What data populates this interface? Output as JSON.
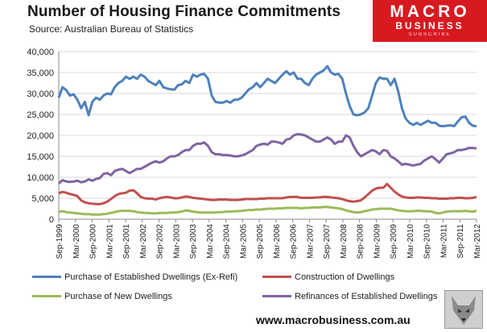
{
  "header": {
    "title": "Number of Housing  Finance Commitments",
    "source": "Source: Australian Bureau of Statistics"
  },
  "logo": {
    "macro": "MACRO",
    "business": "BUSINESS",
    "tagline": "SUBSCRIBE"
  },
  "footer": {
    "url": "www.macrobusiness.com.au"
  },
  "colors": {
    "established": "#4f81bd",
    "construction": "#c0504d",
    "new": "#9bbb59",
    "refinance": "#8064a2",
    "grid": "#d9d9d9",
    "brand": "#d71920"
  },
  "chart_data": {
    "type": "line",
    "title": "Number of Housing Finance Commitments",
    "ylim": [
      0,
      40000
    ],
    "yticks": [
      0,
      5000,
      10000,
      15000,
      20000,
      25000,
      30000,
      35000,
      40000
    ],
    "ytick_labels": [
      "0",
      "5,000",
      "10,000",
      "15,000",
      "20,000",
      "25,000",
      "30,000",
      "35,000",
      "40,000"
    ],
    "grid": true,
    "x_start": "Sep-1999",
    "x_end": "Mar-2012",
    "x_step_months": 6,
    "x_labels": [
      "Sep-1999",
      "Mar-2000",
      "Sep-2000",
      "Mar-2001",
      "Sep-2001",
      "Mar-2002",
      "Sep-2002",
      "Mar-2003",
      "Sep-2003",
      "Mar-2004",
      "Sep-2004",
      "Mar-2005",
      "Sep-2005",
      "Mar-2006",
      "Sep-2006",
      "Mar-2007",
      "Sep-2007",
      "Mar-2008",
      "Sep-2008",
      "Mar-2009",
      "Sep-2009",
      "Mar-2010",
      "Sep-2010",
      "Mar-2011",
      "Sep-2011",
      "Mar-2012"
    ],
    "legend_position": "bottom",
    "series": [
      {
        "name": "Purchase of Established Dwellings (Ex-Refi)",
        "color_key": "established",
        "values": [
          29000,
          31500,
          30800,
          29500,
          29800,
          28500,
          26500,
          28000,
          24800,
          28000,
          29000,
          28500,
          29500,
          30000,
          29800,
          31500,
          32500,
          33000,
          34000,
          33500,
          34000,
          33500,
          34500,
          34000,
          33000,
          32500,
          32000,
          33000,
          31500,
          31200,
          31000,
          30900,
          32000,
          32200,
          33000,
          32500,
          34500,
          34000,
          34500,
          34700,
          33500,
          29500,
          28000,
          27800,
          27800,
          28200,
          27800,
          28500,
          28500,
          29000,
          30000,
          31000,
          31500,
          32500,
          31500,
          32500,
          33500,
          33000,
          32500,
          33500,
          34500,
          35300,
          34500,
          35000,
          33500,
          33500,
          32500,
          32000,
          33500,
          34500,
          35000,
          35500,
          36500,
          35000,
          34500,
          34700,
          33500,
          30000,
          27000,
          25000,
          24800,
          25000,
          25500,
          26500,
          29500,
          32500,
          33800,
          33500,
          33500,
          32000,
          33500,
          30500,
          26500,
          24000,
          23000,
          22500,
          23000,
          22500,
          23000,
          23500,
          23000,
          23000,
          22300,
          22200,
          22300,
          22400,
          22200,
          23300,
          24300,
          24500,
          23000,
          22300,
          22200
        ]
      },
      {
        "name": "Construction of Dwellings",
        "color_key": "construction",
        "values": [
          6200,
          6500,
          6300,
          6000,
          5800,
          5500,
          4500,
          4000,
          3800,
          3700,
          3600,
          3600,
          3800,
          4200,
          4800,
          5500,
          6000,
          6200,
          6300,
          6800,
          6900,
          6200,
          5300,
          5000,
          4900,
          4900,
          4700,
          5000,
          5200,
          5300,
          5200,
          5000,
          5000,
          5200,
          5400,
          5300,
          5100,
          5000,
          4900,
          4800,
          4700,
          4600,
          4600,
          4700,
          4700,
          4700,
          4600,
          4600,
          4600,
          4700,
          4800,
          4800,
          4800,
          4800,
          4900,
          4900,
          5000,
          5000,
          5000,
          5000,
          5000,
          5200,
          5300,
          5300,
          5300,
          5100,
          5100,
          5100,
          5100,
          5200,
          5200,
          5300,
          5300,
          5200,
          5100,
          5000,
          4800,
          4500,
          4300,
          4200,
          4300,
          4500,
          5200,
          6000,
          6800,
          7300,
          7500,
          7500,
          8400,
          7500,
          6600,
          5900,
          5400,
          5200,
          5100,
          5100,
          5200,
          5200,
          5100,
          5100,
          5000,
          5000,
          4900,
          4900,
          4900,
          5000,
          5000,
          5100,
          5100,
          5000,
          5000,
          5100,
          5300
        ]
      },
      {
        "name": "Purchase of New Dwellings",
        "color_key": "new",
        "values": [
          1800,
          1900,
          1700,
          1600,
          1500,
          1400,
          1300,
          1200,
          1200,
          1100,
          1100,
          1100,
          1200,
          1300,
          1500,
          1700,
          1900,
          2000,
          2000,
          2000,
          1900,
          1700,
          1600,
          1500,
          1500,
          1400,
          1400,
          1500,
          1500,
          1500,
          1600,
          1600,
          1700,
          1800,
          2100,
          2000,
          1800,
          1700,
          1600,
          1600,
          1600,
          1600,
          1600,
          1700,
          1700,
          1800,
          1800,
          1900,
          1900,
          2000,
          2100,
          2200,
          2200,
          2300,
          2300,
          2400,
          2500,
          2500,
          2500,
          2600,
          2600,
          2700,
          2700,
          2700,
          2700,
          2600,
          2700,
          2700,
          2800,
          2800,
          2800,
          2900,
          2900,
          2800,
          2700,
          2600,
          2400,
          2100,
          1900,
          1700,
          1600,
          1700,
          1900,
          2100,
          2300,
          2400,
          2500,
          2500,
          2500,
          2500,
          2300,
          2100,
          2000,
          1900,
          1900,
          1900,
          2000,
          2000,
          1900,
          1900,
          1800,
          1500,
          1400,
          1600,
          1800,
          1900,
          1900,
          1900,
          1900,
          2000,
          1900,
          1800,
          2000
        ]
      },
      {
        "name": "Refinances of Established Dwellings",
        "color_key": "refinance",
        "values": [
          8500,
          9300,
          9000,
          8900,
          9000,
          9200,
          8800,
          9000,
          9500,
          9200,
          9600,
          9800,
          10800,
          11000,
          10500,
          11500,
          11800,
          12000,
          11500,
          11000,
          11500,
          12000,
          12000,
          12500,
          13000,
          13500,
          13800,
          13500,
          13800,
          14500,
          15000,
          15000,
          15300,
          16000,
          16500,
          16500,
          17500,
          18000,
          18000,
          18300,
          17500,
          16000,
          15500,
          15500,
          15300,
          15300,
          15200,
          15000,
          15000,
          15200,
          15500,
          16000,
          16500,
          17500,
          17800,
          18000,
          17800,
          18500,
          18500,
          18300,
          18000,
          19000,
          19200,
          20000,
          20300,
          20200,
          20000,
          19500,
          19000,
          18500,
          18500,
          19000,
          19500,
          19000,
          18000,
          18500,
          18500,
          20000,
          19500,
          17500,
          16000,
          15000,
          15500,
          16000,
          16500,
          16200,
          15500,
          16500,
          16300,
          15000,
          14500,
          13800,
          13000,
          13200,
          13000,
          12800,
          13000,
          13200,
          14000,
          14500,
          15000,
          14300,
          13500,
          14500,
          15500,
          15700,
          16000,
          16500,
          16500,
          16700,
          17000,
          17000,
          16900
        ]
      }
    ]
  }
}
